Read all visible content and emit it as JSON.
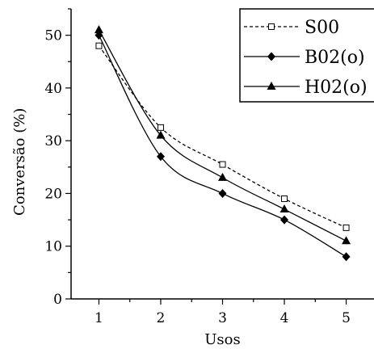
{
  "chart_data": {
    "type": "line",
    "xlabel": "Usos",
    "ylabel": "Conversão (%)",
    "x": [
      1,
      2,
      3,
      4,
      5
    ],
    "xlim": [
      0.55,
      5.45
    ],
    "ylim": [
      0,
      55
    ],
    "xticks": [
      1,
      2,
      3,
      4,
      5
    ],
    "yticks": [
      0,
      10,
      20,
      30,
      40,
      50
    ],
    "grid": false,
    "legend_position": "top-right",
    "series": [
      {
        "name": "S00",
        "values": [
          48,
          32.5,
          25.5,
          19,
          13.5
        ],
        "line_style": "dashed",
        "marker": "open-square",
        "color": "#000000"
      },
      {
        "name": "B02(o)",
        "values": [
          50,
          27,
          20,
          15,
          8
        ],
        "line_style": "solid",
        "marker": "filled-diamond",
        "color": "#000000"
      },
      {
        "name": "H02(o)",
        "values": [
          51,
          31,
          23,
          17,
          11
        ],
        "line_style": "solid",
        "marker": "filled-triangle",
        "color": "#000000"
      }
    ]
  }
}
